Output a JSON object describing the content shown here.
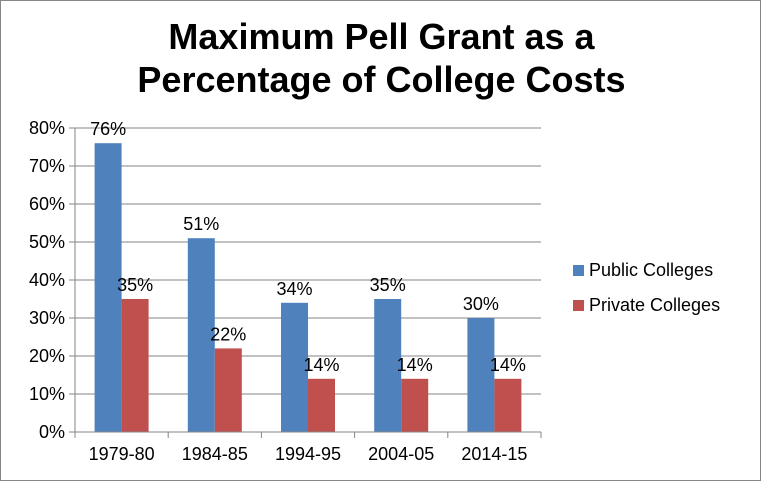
{
  "chart_data": {
    "type": "bar",
    "title_line1": "Maximum Pell Grant as a",
    "title_line2": "Percentage of College Costs",
    "categories": [
      "1979-80",
      "1984-85",
      "1994-95",
      "2004-05",
      "2014-15"
    ],
    "series": [
      {
        "name": "Public Colleges",
        "color": "#4F81BD",
        "values": [
          76,
          51,
          34,
          35,
          30
        ]
      },
      {
        "name": "Private Colleges",
        "color": "#C0504D",
        "values": [
          35,
          22,
          14,
          14,
          14
        ]
      }
    ],
    "data_labels": [
      [
        "76%",
        "51%",
        "34%",
        "35%",
        "30%"
      ],
      [
        "35%",
        "22%",
        "14%",
        "14%",
        "14%"
      ]
    ],
    "ylim": [
      0,
      80
    ],
    "yticks": [
      0,
      10,
      20,
      30,
      40,
      50,
      60,
      70,
      80
    ],
    "ytick_labels": [
      "0%",
      "10%",
      "20%",
      "30%",
      "40%",
      "50%",
      "60%",
      "70%",
      "80%"
    ],
    "grid": true,
    "legend": "right",
    "xlabel": "",
    "ylabel": ""
  }
}
